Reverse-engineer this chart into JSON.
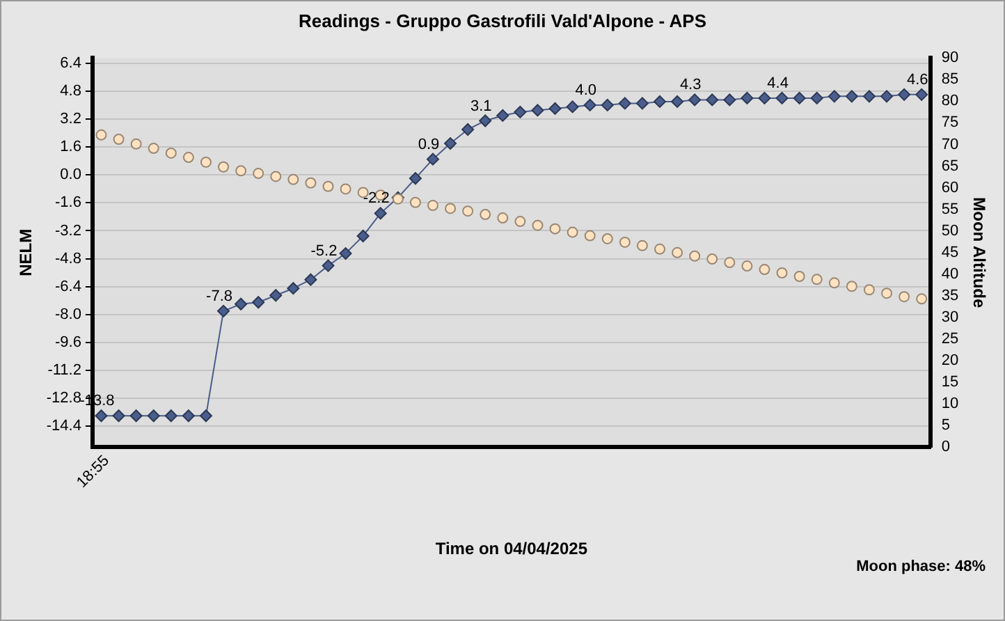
{
  "chart_data": {
    "type": "line",
    "title": "Readings - Gruppo Gastrofili Vald'Alpone - APS",
    "xlabel": "Time on 04/04/2025",
    "ylabel": "NELM",
    "y2label": "Moon Altitude",
    "annotations": [
      "18:55",
      "Moon phase: 48%"
    ],
    "categories": [
      null,
      null,
      null,
      null,
      null,
      null,
      null,
      null,
      null,
      null,
      null,
      null,
      null,
      null,
      null,
      null,
      null,
      null,
      null,
      null,
      null,
      null,
      null,
      null,
      null,
      null,
      null,
      null,
      null,
      null,
      null,
      null,
      null,
      null,
      null,
      null,
      null,
      null,
      null,
      null,
      null,
      null,
      null,
      null,
      null,
      null,
      null,
      null
    ],
    "series": [
      {
        "color": "#4a5d8c",
        "marker": "diamond",
        "values": [
          -13.8,
          -13.8,
          -13.8,
          -13.8,
          -13.8,
          -13.8,
          -13.8,
          -7.8,
          -7.4,
          -7.3,
          -6.9,
          -6.5,
          -6.0,
          -5.2,
          -4.5,
          -3.5,
          -2.2,
          -1.3,
          -0.2,
          0.9,
          1.8,
          2.6,
          3.1,
          3.4,
          3.6,
          3.7,
          3.8,
          3.9,
          4.0,
          4.0,
          4.1,
          4.1,
          4.2,
          4.2,
          4.3,
          4.3,
          4.3,
          4.4,
          4.4,
          4.4,
          4.4,
          4.4,
          4.5,
          4.5,
          4.5,
          4.5,
          4.6,
          4.6
        ],
        "value_labels": [
          "-13.8",
          null,
          null,
          null,
          null,
          null,
          null,
          "-7.8",
          null,
          null,
          null,
          null,
          null,
          "-5.2",
          null,
          null,
          "-2.2",
          null,
          null,
          "0.9",
          null,
          null,
          "3.1",
          null,
          null,
          null,
          null,
          null,
          "4.0",
          null,
          null,
          null,
          null,
          null,
          "4.3",
          null,
          null,
          null,
          null,
          "4.4",
          null,
          null,
          null,
          null,
          null,
          null,
          null,
          "4.6"
        ]
      },
      {
        "type": "scatter",
        "axis": "y2",
        "color": "#ffe2c2",
        "marker": "circle",
        "values": [
          72.2,
          71.2,
          70.1,
          69.1,
          68.0,
          67.0,
          65.9,
          64.8,
          63.9,
          63.3,
          62.6,
          61.9,
          61.1,
          60.3,
          59.7,
          58.9,
          58.3,
          57.4,
          56.6,
          55.9,
          55.2,
          54.6,
          53.8,
          53.0,
          52.2,
          51.3,
          50.5,
          49.7,
          48.9,
          48.2,
          47.4,
          46.6,
          45.8,
          45.0,
          44.2,
          43.5,
          42.7,
          41.9,
          41.1,
          40.3,
          39.5,
          38.8,
          38.0,
          37.2,
          36.4,
          35.6,
          34.8,
          34.3
        ]
      }
    ],
    "ylim": [
      -15.6,
      6.7
    ],
    "yticks": [
      -14.4,
      -12.8,
      -11.2,
      -9.6,
      {
        "value": -8,
        "label": "-8.0"
      },
      -6.4,
      -4.8,
      -3.2,
      -1.6,
      {
        "value": 0,
        "label": "0.0"
      },
      1.6,
      3.2,
      4.8,
      6.4
    ],
    "y2lim": [
      0,
      90
    ],
    "y2ticks": [
      0,
      5,
      10,
      15,
      20,
      25,
      30,
      35,
      40,
      45,
      50,
      55,
      60,
      65,
      70,
      75,
      80,
      85,
      90
    ],
    "grid": "y",
    "legend": false
  }
}
